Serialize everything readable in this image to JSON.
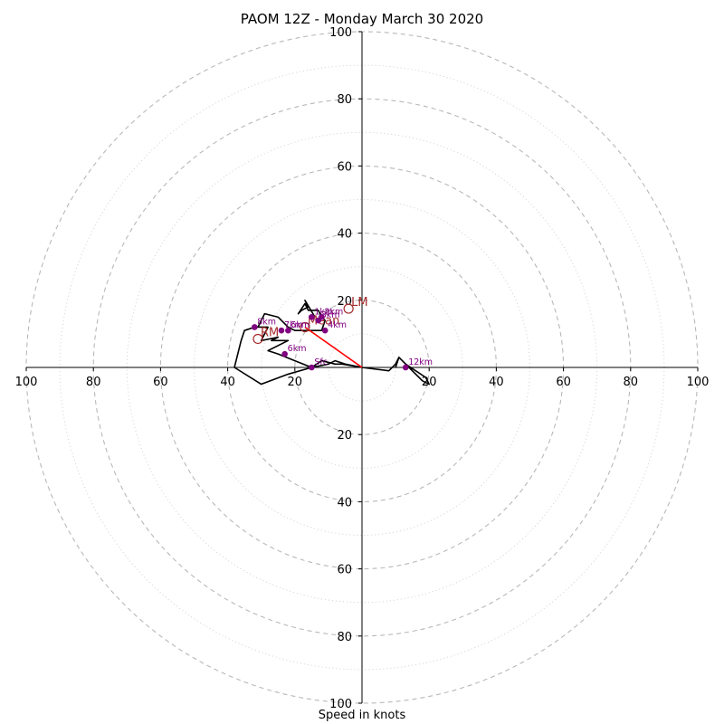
{
  "chart_data": {
    "type": "hodograph",
    "title": "PAOM 12Z - Monday March 30 2020",
    "xlabel": "Speed in knots",
    "ring_labels": [
      "20",
      "40",
      "60",
      "80",
      "100"
    ],
    "ring_values": [
      20,
      40,
      60,
      80,
      100
    ],
    "minor_ring_values": [
      10,
      30,
      50,
      70,
      90
    ],
    "range_max": 100,
    "units": "knots",
    "grid": true,
    "hodograph_trace": {
      "u": [
        0,
        -6,
        -8,
        -12,
        -15,
        -20,
        -25,
        -28,
        -22,
        -27,
        -25,
        -30,
        -28,
        -32,
        -35,
        -36,
        -38,
        -30,
        -22,
        -15,
        -10,
        -8,
        -5,
        0,
        8,
        10,
        11,
        12,
        14,
        16,
        18,
        20,
        19,
        13,
        11,
        10
      ],
      "v": [
        0,
        1,
        1,
        2,
        0,
        2,
        4,
        5,
        8,
        8,
        9,
        8,
        12,
        12,
        11,
        8,
        0,
        -5,
        -2,
        0,
        1,
        2,
        1,
        0,
        -1,
        1,
        3,
        2,
        0,
        -2,
        -4,
        -5,
        -3,
        1,
        3,
        0
      ]
    },
    "upper_trace": {
      "u": [
        -31,
        -29,
        -25,
        -22,
        -20,
        -12,
        -11,
        -12,
        -13,
        -16,
        -17,
        -19,
        -18,
        -16,
        -17,
        -14
      ],
      "v": [
        12,
        16,
        15,
        12,
        11,
        11,
        14,
        15,
        17,
        17,
        19,
        16,
        17,
        18,
        20,
        15
      ]
    },
    "height_labels": [
      {
        "label": "Sfc",
        "u": -15,
        "v": 0
      },
      {
        "label": "4km",
        "u": -11,
        "v": 11
      },
      {
        "label": "6km",
        "u": -23,
        "v": 4
      },
      {
        "label": "7km",
        "u": -24,
        "v": 11
      },
      {
        "label": "8km",
        "u": -32,
        "v": 12
      },
      {
        "label": "12km",
        "u": 13,
        "v": 0
      },
      {
        "label": "2km",
        "u": -12,
        "v": 15
      },
      {
        "label": "1km",
        "u": -15,
        "v": 15
      },
      {
        "label": "3km",
        "u": -13,
        "v": 14
      },
      {
        "label": "5km",
        "u": -22,
        "v": 11
      }
    ],
    "storm_motions": [
      {
        "label": "LM",
        "u": -4,
        "v": 17.5
      },
      {
        "label": "RM",
        "u": -31,
        "v": 8.5
      },
      {
        "label": "Mean",
        "u": -17,
        "v": 12
      }
    ],
    "shear_vector": {
      "from": {
        "u": 0,
        "v": 0
      },
      "to": {
        "u": -17,
        "v": 12
      }
    },
    "colors": {
      "trace": "#000000",
      "height_marker": "#800080",
      "storm_motion": "#a52a2a",
      "shear_vector": "#ff0000",
      "ring_major": "#b8b8b8",
      "ring_minor": "#d0d0d0"
    }
  }
}
